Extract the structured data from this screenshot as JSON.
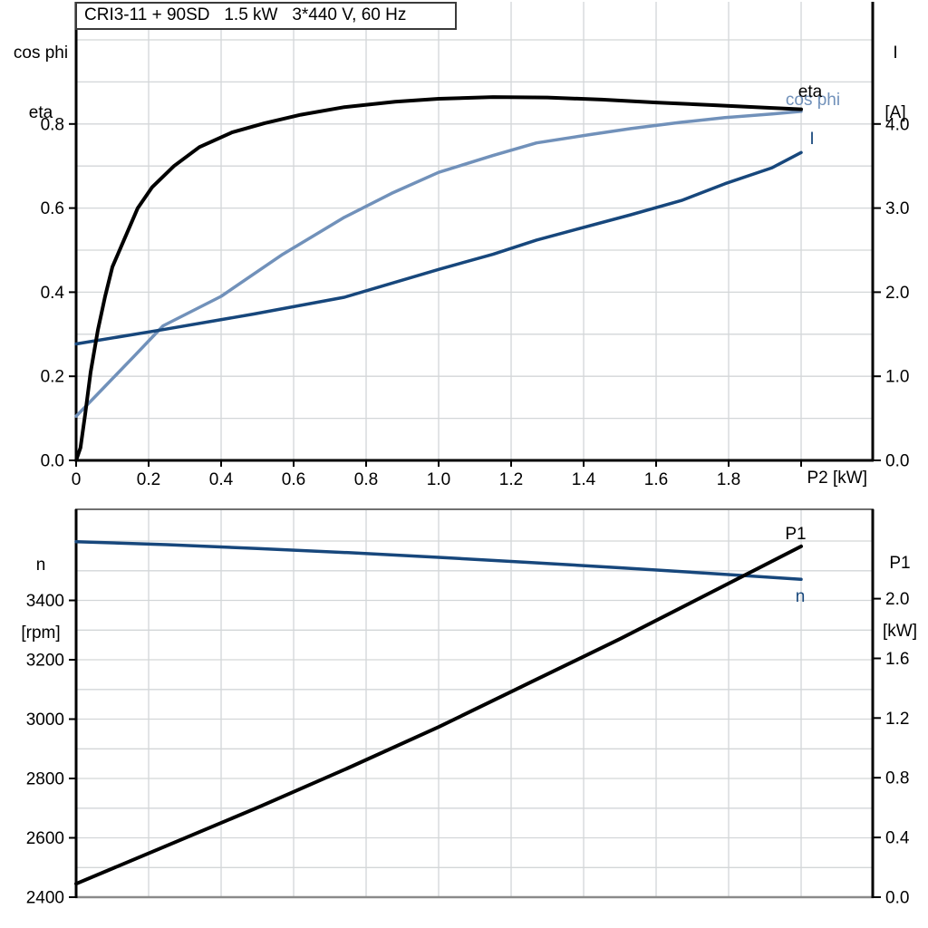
{
  "header": {
    "title_box": "CRI3-11 + 90SD   1.5 kW   3*440 V, 60 Hz"
  },
  "colors": {
    "black_curve": "#000000",
    "light_blue_curve": "#7191ba",
    "dark_blue_curve": "#17477c",
    "grid": "#d3d6d8",
    "frame_gray": "#707070",
    "frame_gray_light": "#8a8a8a",
    "axis": "#000000"
  },
  "chart_data": [
    {
      "id": "motor-electrical-chart",
      "type": "line",
      "x_axis": {
        "label": "P2 [kW]",
        "min": 0,
        "max": 2.1975,
        "ticks": [
          0,
          0.2,
          0.4,
          0.6,
          0.8,
          1.0,
          1.2,
          1.4,
          1.6,
          1.8,
          2.0
        ],
        "tick_labels": [
          [
            "0",
            0
          ],
          [
            "0.2",
            0.2
          ],
          [
            "0.4",
            0.4
          ],
          [
            "0.6",
            0.6
          ],
          [
            "0.8",
            0.8
          ],
          [
            "1.0",
            1.0
          ],
          [
            "1.2",
            1.2
          ],
          [
            "1.4",
            1.4
          ],
          [
            "1.6",
            1.6
          ],
          [
            "1.8",
            1.8
          ]
        ],
        "grid": [
          0.2,
          0.4,
          0.6,
          0.8,
          1.0,
          1.2,
          1.4,
          1.6,
          1.8,
          2.0
        ],
        "note": "label P2 [kW] replaces the 2.0 tick label"
      },
      "left_axis": {
        "title": [
          "cos phi",
          "eta"
        ],
        "min": 0,
        "max": 1.0905,
        "ticks": [
          [
            "0.8",
            0.8
          ],
          [
            "0.6",
            0.6
          ],
          [
            "0.4",
            0.4
          ],
          [
            "0.2",
            0.2
          ],
          [
            "0.0",
            0.0
          ]
        ],
        "grid": [
          0.1,
          0.2,
          0.3,
          0.4,
          0.5,
          0.6,
          0.7,
          0.8,
          0.9,
          1.0
        ]
      },
      "right_axis": {
        "title": [
          "I",
          "[A]"
        ],
        "min": 0,
        "max": 5.4525,
        "ticks": [
          [
            "4.0",
            4.0
          ],
          [
            "3.0",
            3.0
          ],
          [
            "2.0",
            2.0
          ],
          [
            "1.0",
            1.0
          ],
          [
            "0.0",
            0.0
          ]
        ]
      },
      "series": [
        {
          "name": "cos phi",
          "axis": "left",
          "color": "#7191ba",
          "width": 3.5,
          "points": [
            [
              0,
              0.105
            ],
            [
              0.073,
              0.17
            ],
            [
              0.157,
              0.245
            ],
            [
              0.24,
              0.32
            ],
            [
              0.4,
              0.39
            ],
            [
              0.57,
              0.49
            ],
            [
              0.74,
              0.578
            ],
            [
              0.87,
              0.635
            ],
            [
              1.0,
              0.685
            ],
            [
              1.15,
              0.725
            ],
            [
              1.27,
              0.755
            ],
            [
              1.42,
              0.775
            ],
            [
              1.53,
              0.789
            ],
            [
              1.67,
              0.804
            ],
            [
              1.79,
              0.815
            ],
            [
              1.92,
              0.824
            ],
            [
              2.0,
              0.83
            ]
          ],
          "label": {
            "text": "cos phi",
            "px": [
              897,
              109
            ],
            "color": "#7191ba"
          }
        },
        {
          "name": "I",
          "axis": "right",
          "color": "#17477c",
          "width": 3.5,
          "points": [
            [
              0,
              1.385
            ],
            [
              0.24,
              1.555
            ],
            [
              0.49,
              1.74
            ],
            [
              0.74,
              1.94
            ],
            [
              1.0,
              2.27
            ],
            [
              1.15,
              2.45
            ],
            [
              1.27,
              2.62
            ],
            [
              1.53,
              2.92
            ],
            [
              1.67,
              3.09
            ],
            [
              1.79,
              3.29
            ],
            [
              1.92,
              3.48
            ],
            [
              2.0,
              3.66
            ]
          ],
          "label": {
            "text": "I",
            "px": [
              896,
              152
            ],
            "color": "#17477c"
          }
        },
        {
          "name": "eta",
          "axis": "left",
          "color": "#000000",
          "width": 4,
          "points": [
            [
              0,
              0
            ],
            [
              0.012,
              0.03
            ],
            [
              0.025,
              0.11
            ],
            [
              0.04,
              0.21
            ],
            [
              0.06,
              0.31
            ],
            [
              0.08,
              0.39
            ],
            [
              0.1,
              0.46
            ],
            [
              0.13,
              0.52
            ],
            [
              0.17,
              0.6
            ],
            [
              0.21,
              0.65
            ],
            [
              0.27,
              0.7
            ],
            [
              0.34,
              0.745
            ],
            [
              0.43,
              0.78
            ],
            [
              0.52,
              0.802
            ],
            [
              0.62,
              0.822
            ],
            [
              0.74,
              0.84
            ],
            [
              0.88,
              0.853
            ],
            [
              1.0,
              0.86
            ],
            [
              1.15,
              0.864
            ],
            [
              1.3,
              0.863
            ],
            [
              1.45,
              0.858
            ],
            [
              1.6,
              0.851
            ],
            [
              1.75,
              0.845
            ],
            [
              1.9,
              0.839
            ],
            [
              2.0,
              0.835
            ]
          ],
          "label": {
            "text": "eta",
            "px": [
              894,
              100
            ],
            "color": "#000000"
          }
        }
      ]
    },
    {
      "id": "motor-speed-power-chart",
      "type": "line",
      "x_axis": {
        "label": "",
        "min": 0,
        "max": 2.1975,
        "ticks": [],
        "tick_labels": [],
        "grid": [
          0.2,
          0.4,
          0.6,
          0.8,
          1.0,
          1.2,
          1.4,
          1.6,
          1.8,
          2.0
        ]
      },
      "left_axis": {
        "title": [
          "n",
          "[rpm]"
        ],
        "min": 2400,
        "max": 3707,
        "ticks": [
          [
            "3400",
            3400
          ],
          [
            "3200",
            3200
          ],
          [
            "3000",
            3000
          ],
          [
            "2800",
            2800
          ],
          [
            "2600",
            2600
          ],
          [
            "2400",
            2400
          ]
        ],
        "grid": [
          2500,
          2600,
          2700,
          2800,
          2900,
          3000,
          3100,
          3200,
          3300,
          3400,
          3500,
          3600
        ]
      },
      "right_axis": {
        "title": [
          "P1",
          "[kW]"
        ],
        "min": 0,
        "max": 2.5985,
        "ticks": [
          [
            "2.0",
            2.0
          ],
          [
            "1.6",
            1.6
          ],
          [
            "1.2",
            1.2
          ],
          [
            "0.8",
            0.8
          ],
          [
            "0.4",
            0.4
          ],
          [
            "0.0",
            0.0
          ]
        ]
      },
      "series": [
        {
          "name": "n",
          "axis": "left",
          "color": "#17477c",
          "width": 3.5,
          "points": [
            [
              0,
              3598
            ],
            [
              0.25,
              3588
            ],
            [
              0.5,
              3575
            ],
            [
              0.75,
              3561
            ],
            [
              1.0,
              3545
            ],
            [
              1.25,
              3528
            ],
            [
              1.5,
              3510
            ],
            [
              1.75,
              3491
            ],
            [
              2.0,
              3471
            ]
          ],
          "label": {
            "text": "n",
            "px": [
              883,
              657
            ],
            "color": "#17477c"
          }
        },
        {
          "name": "P1",
          "axis": "right",
          "color": "#000000",
          "width": 4,
          "points": [
            [
              0,
              0.09
            ],
            [
              0.25,
              0.345
            ],
            [
              0.5,
              0.6
            ],
            [
              0.75,
              0.865
            ],
            [
              1.0,
              1.14
            ],
            [
              1.25,
              1.435
            ],
            [
              1.5,
              1.73
            ],
            [
              1.75,
              2.04
            ],
            [
              2.0,
              2.35
            ]
          ],
          "label": {
            "text": "P1",
            "px": [
              878,
              588
            ],
            "color": "#000000"
          }
        }
      ]
    }
  ]
}
